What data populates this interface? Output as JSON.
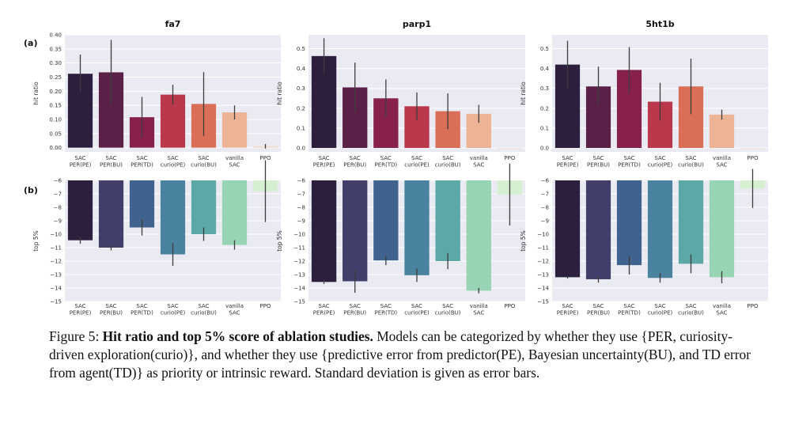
{
  "panel_labels": {
    "a": "(a)",
    "b": "(b)"
  },
  "caption": {
    "prefix": "Figure 5: ",
    "bold": "Hit ratio and top 5% score of ablation studies.",
    "text": " Models can be categorized by whether they use {PER, curiosity-driven exploration(curio)}, and whether they use {predictive error from predictor(PE), Bayesian uncertainty(BU), and TD error from agent(TD)} as priority or intrinsic reward. Standard deviation is given as error bars."
  },
  "colors": {
    "panel_bg": "#eaeaf2",
    "grid": "#ffffff",
    "hit_palette": [
      "#2d1e3e",
      "#5b2048",
      "#87214b",
      "#b9384b",
      "#d86f56",
      "#ecb394",
      "#f6dccb"
    ],
    "top_palette": [
      "#2c1e3d",
      "#413e6c",
      "#40628e",
      "#4a83a0",
      "#5ba8a7",
      "#97d4b3",
      "#d6efd0"
    ]
  },
  "chart_data": [
    {
      "type": "bar",
      "row": "a",
      "col": 0,
      "title": "fa7",
      "ylabel": "hit ratio",
      "categories": [
        [
          "SAC",
          "PER(PE)"
        ],
        [
          "SAC",
          "PER(BU)"
        ],
        [
          "SAC",
          "PER(TD)"
        ],
        [
          "SAC",
          "curio(PE)"
        ],
        [
          "SAC",
          "curio(BU)"
        ],
        [
          "vanilla",
          "SAC"
        ],
        [
          "PPO"
        ]
      ],
      "values": [
        0.262,
        0.267,
        0.108,
        0.188,
        0.155,
        0.125,
        0.005
      ],
      "errors": [
        0.068,
        0.115,
        0.072,
        0.035,
        0.113,
        0.025,
        0.008
      ],
      "ylim": [
        -0.015,
        0.4
      ],
      "yticks": [
        "0.00",
        "0.05",
        "0.10",
        "0.15",
        "0.20",
        "0.25",
        "0.30",
        "0.35",
        "0.40"
      ],
      "ytick_values": [
        0,
        0.05,
        0.1,
        0.15,
        0.2,
        0.25,
        0.3,
        0.35,
        0.4
      ]
    },
    {
      "type": "bar",
      "row": "a",
      "col": 1,
      "title": "parp1",
      "ylabel": "hit ratio",
      "categories": [
        [
          "SAC",
          "PER(PE)"
        ],
        [
          "SAC",
          "PER(BU)"
        ],
        [
          "SAC",
          "PER(TD)"
        ],
        [
          "SAC",
          "curio(PE)"
        ],
        [
          "SAC",
          "curio(BU)"
        ],
        [
          "vanilla",
          "SAC"
        ],
        [
          "PPO"
        ]
      ],
      "values": [
        0.463,
        0.305,
        0.25,
        0.21,
        0.185,
        0.172,
        0.0
      ],
      "errors": [
        0.09,
        0.125,
        0.095,
        0.07,
        0.09,
        0.045,
        0.0
      ],
      "ylim": [
        -0.02,
        0.57
      ],
      "yticks": [
        "0.0",
        "0.1",
        "0.2",
        "0.3",
        "0.4",
        "0.5"
      ],
      "ytick_values": [
        0,
        0.1,
        0.2,
        0.3,
        0.4,
        0.5
      ]
    },
    {
      "type": "bar",
      "row": "a",
      "col": 2,
      "title": "5ht1b",
      "ylabel": "hit ratio",
      "categories": [
        [
          "SAC",
          "PER(PE)"
        ],
        [
          "SAC",
          "PER(BU)"
        ],
        [
          "SAC",
          "PER(TD)"
        ],
        [
          "SAC",
          "curio(PE)"
        ],
        [
          "SAC",
          "curio(BU)"
        ],
        [
          "vanilla",
          "SAC"
        ],
        [
          "PPO"
        ]
      ],
      "values": [
        0.42,
        0.31,
        0.393,
        0.233,
        0.31,
        0.168,
        0.0
      ],
      "errors": [
        0.12,
        0.1,
        0.115,
        0.095,
        0.14,
        0.025,
        0.0
      ],
      "ylim": [
        -0.02,
        0.57
      ],
      "yticks": [
        "0.0",
        "0.1",
        "0.2",
        "0.3",
        "0.4",
        "0.5"
      ],
      "ytick_values": [
        0,
        0.1,
        0.2,
        0.3,
        0.4,
        0.5
      ]
    },
    {
      "type": "bar",
      "row": "b",
      "col": 0,
      "ylabel": "top 5%",
      "categories": [
        [
          "SAC",
          "PER(PE)"
        ],
        [
          "SAC",
          "PER(BU)"
        ],
        [
          "SAC",
          "PER(TD)"
        ],
        [
          "SAC",
          "curio(PE)"
        ],
        [
          "SAC",
          "curio(BU)"
        ],
        [
          "vanilla",
          "SAC"
        ],
        [
          "PPO"
        ]
      ],
      "values": [
        -10.45,
        -11.0,
        -9.5,
        -11.5,
        -10.0,
        -10.8,
        -6.8
      ],
      "errors": [
        0.25,
        0.2,
        0.6,
        0.85,
        0.5,
        0.35,
        2.3
      ],
      "ylim": [
        -15,
        -6
      ],
      "yticks": [
        "−6",
        "−7",
        "−8",
        "−9",
        "−10",
        "−11",
        "−12",
        "−13",
        "−14",
        "−15"
      ],
      "ytick_values": [
        -6,
        -7,
        -8,
        -9,
        -10,
        -11,
        -12,
        -13,
        -14,
        -15
      ]
    },
    {
      "type": "bar",
      "row": "b",
      "col": 1,
      "ylabel": "top 5%",
      "categories": [
        [
          "SAC",
          "PER(PE)"
        ],
        [
          "SAC",
          "PER(BU)"
        ],
        [
          "SAC",
          "PER(TD)"
        ],
        [
          "SAC",
          "curio(PE)"
        ],
        [
          "SAC",
          "curio(BU)"
        ],
        [
          "vanilla",
          "SAC"
        ],
        [
          "PPO"
        ]
      ],
      "values": [
        -13.55,
        -13.5,
        -11.95,
        -13.05,
        -12.0,
        -14.2,
        -7.05
      ],
      "errors": [
        0.15,
        0.85,
        0.35,
        0.5,
        0.6,
        0.2,
        2.3
      ],
      "ylim": [
        -15,
        -6
      ],
      "yticks": [
        "−6",
        "−7",
        "−8",
        "−9",
        "−10",
        "−11",
        "−12",
        "−13",
        "−14",
        "−15"
      ],
      "ytick_values": [
        -6,
        -7,
        -8,
        -9,
        -10,
        -11,
        -12,
        -13,
        -14,
        -15
      ]
    },
    {
      "type": "bar",
      "row": "b",
      "col": 2,
      "ylabel": "top 5%",
      "categories": [
        [
          "SAC",
          "PER(PE)"
        ],
        [
          "SAC",
          "PER(BU)"
        ],
        [
          "SAC",
          "PER(TD)"
        ],
        [
          "SAC",
          "curio(PE)"
        ],
        [
          "SAC",
          "curio(BU)"
        ],
        [
          "vanilla",
          "SAC"
        ],
        [
          "PPO"
        ]
      ],
      "values": [
        -13.2,
        -13.35,
        -12.3,
        -13.25,
        -12.2,
        -13.2,
        -6.6
      ],
      "errors": [
        0.1,
        0.25,
        0.7,
        0.35,
        0.7,
        0.45,
        1.45
      ],
      "ylim": [
        -15,
        -6
      ],
      "yticks": [
        "−6",
        "−7",
        "−8",
        "−9",
        "−10",
        "−11",
        "−12",
        "−13",
        "−14",
        "−15"
      ],
      "ytick_values": [
        -6,
        -7,
        -8,
        -9,
        -10,
        -11,
        -12,
        -13,
        -14,
        -15
      ]
    }
  ]
}
